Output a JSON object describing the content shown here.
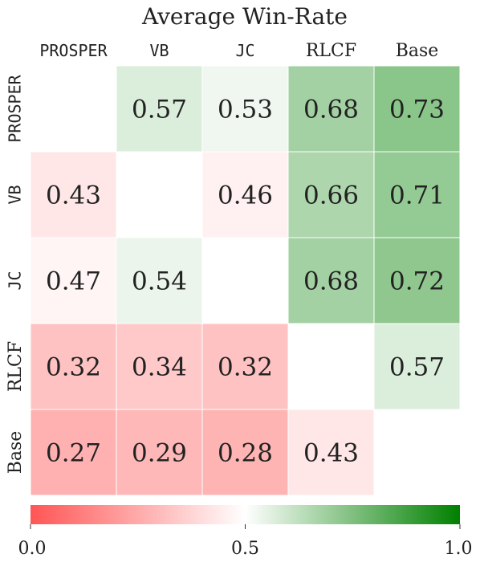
{
  "chart_data": {
    "type": "heatmap",
    "title": "Average Win-Rate",
    "columns": [
      "PROSPER",
      "VB",
      "JC",
      "RLCF",
      "Base"
    ],
    "rows": [
      "PROSPER",
      "VB",
      "JC",
      "RLCF",
      "Base"
    ],
    "values": [
      [
        null,
        0.57,
        0.53,
        0.68,
        0.73
      ],
      [
        0.43,
        null,
        0.46,
        0.66,
        0.71
      ],
      [
        0.47,
        0.54,
        null,
        0.68,
        0.72
      ],
      [
        0.32,
        0.34,
        0.32,
        null,
        0.57
      ],
      [
        0.27,
        0.29,
        0.28,
        0.43,
        null
      ]
    ],
    "value_labels": [
      [
        "",
        "0.57",
        "0.53",
        "0.68",
        "0.73"
      ],
      [
        "0.43",
        "",
        "0.46",
        "0.66",
        "0.71"
      ],
      [
        "0.47",
        "0.54",
        "",
        "0.68",
        "0.72"
      ],
      [
        "0.32",
        "0.34",
        "0.32",
        "",
        "0.57"
      ],
      [
        "0.27",
        "0.29",
        "0.28",
        "0.43",
        ""
      ]
    ],
    "colorbar": {
      "range": [
        0.0,
        1.0
      ],
      "ticks": [
        "0.0",
        "0.5",
        "1.0"
      ],
      "colors": [
        "#ff5555",
        "#ffffff",
        "#008000"
      ]
    }
  }
}
